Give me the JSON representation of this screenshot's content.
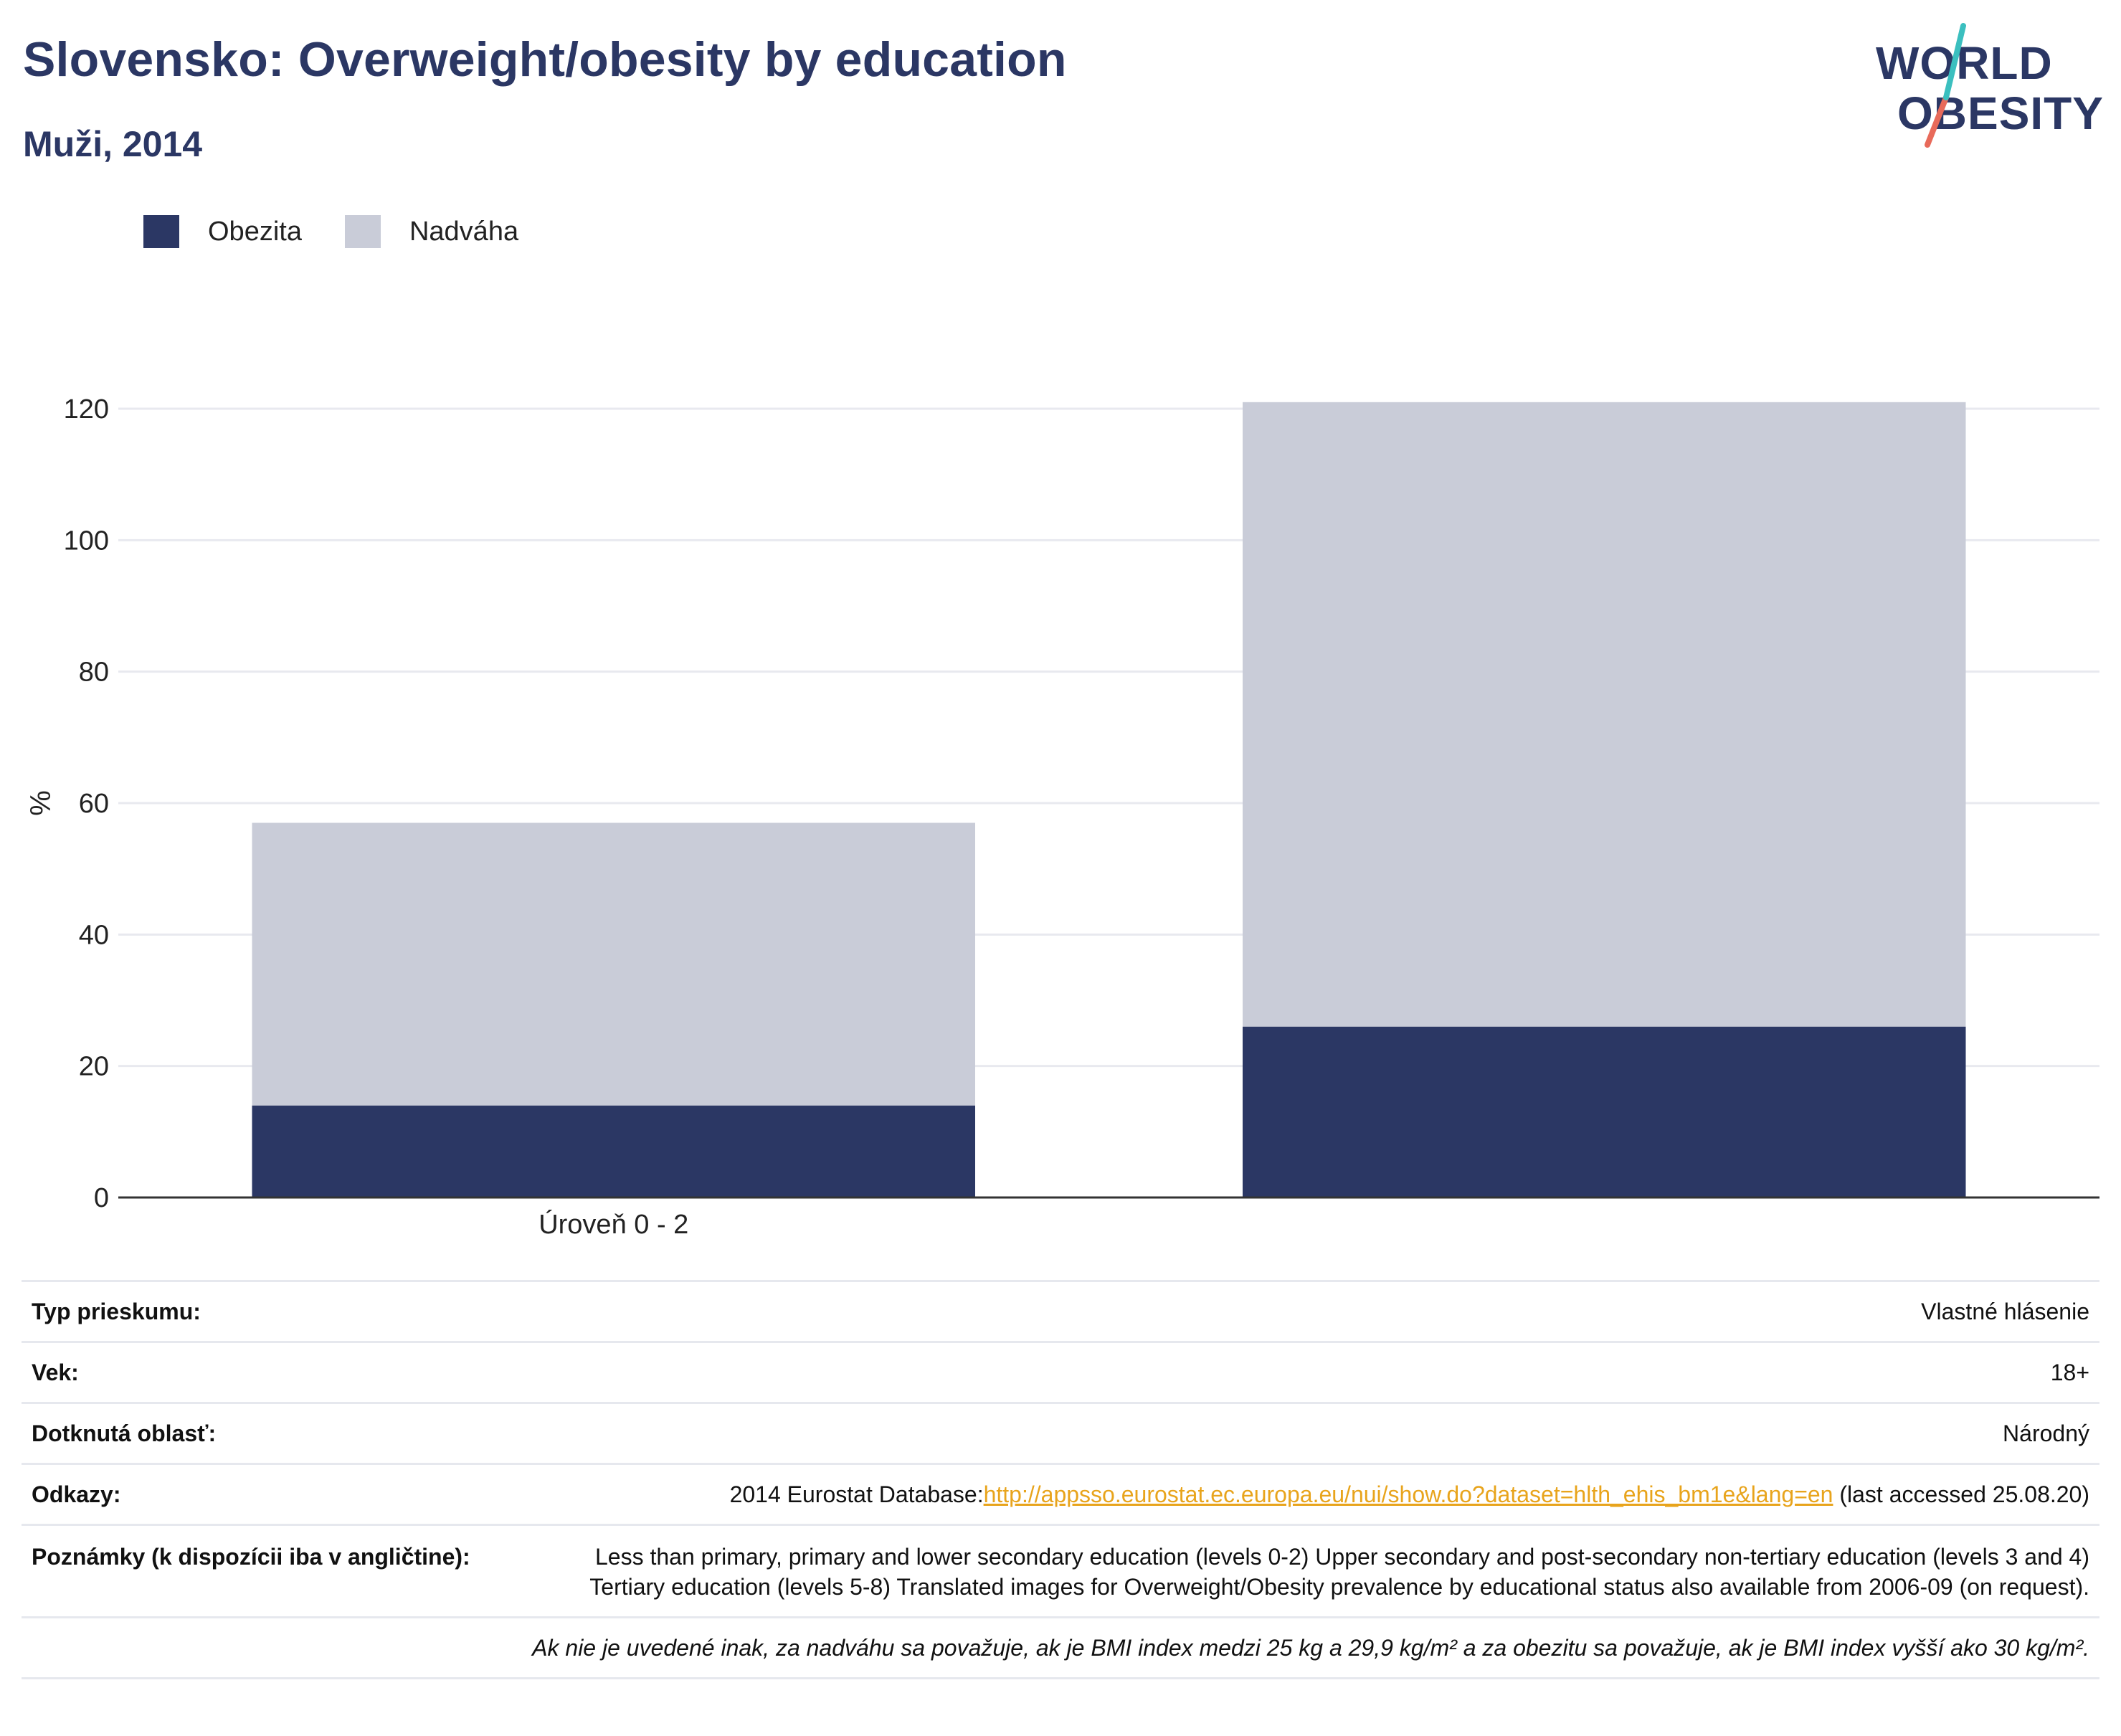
{
  "header": {
    "title": "Slovensko: Overweight/obesity by education",
    "subtitle": "Muži, 2014"
  },
  "logo": {
    "line1": "WORLD",
    "line2": "OBESITY"
  },
  "colors": {
    "obesity": "#2b3764",
    "overweight": "#c9ccd8",
    "title": "#2b3764",
    "link": "#e8a41c",
    "logo_slash_teal": "#3bbfbf",
    "logo_slash_coral": "#e86a5a"
  },
  "legend": [
    {
      "label": "Obezita",
      "color": "#2b3764"
    },
    {
      "label": "Nadváha",
      "color": "#c9ccd8"
    }
  ],
  "chart_data": {
    "type": "bar",
    "stacked": true,
    "categories": [
      "Úroveň 0 - 2",
      ""
    ],
    "series": [
      {
        "name": "Obezita",
        "values": [
          14,
          26
        ]
      },
      {
        "name": "Nadváha",
        "values": [
          43,
          95
        ]
      }
    ],
    "xlabel": "",
    "ylabel": "%",
    "ylim": [
      0,
      120
    ],
    "yticks": [
      0,
      20,
      40,
      60,
      80,
      100,
      120
    ],
    "grid": true,
    "legend_position": "top-left"
  },
  "info": {
    "survey_label": "Typ prieskumu:",
    "survey_value": "Vlastné hlásenie",
    "age_label": "Vek:",
    "age_value": "18+",
    "area_label": "Dotknutá oblasť:",
    "area_value": "Národný",
    "refs_label": "Odkazy:",
    "refs_prefix": "2014 Eurostat Database:",
    "refs_link": "http://appsso.eurostat.ec.europa.eu/nui/show.do?dataset=hlth_ehis_bm1e&lang=en",
    "refs_suffix": " (last accessed 25.08.20)",
    "notes_label": "Poznámky (k dispozícii iba v angličtine):",
    "notes_value": "Less than primary, primary and lower secondary education (levels 0-2) Upper secondary and post-secondary non-tertiary education (levels 3 and 4) Tertiary education (levels 5-8) Translated images for Overweight/Obesity prevalence by educational status also available from 2006-09 (on request).",
    "footnote": "Ak nie je uvedené inak, za nadváhu sa považuje, ak je BMI index medzi 25 kg a 29,9 kg/m² a za obezitu sa považuje, ak je BMI index vyšší ako 30 kg/m²."
  }
}
